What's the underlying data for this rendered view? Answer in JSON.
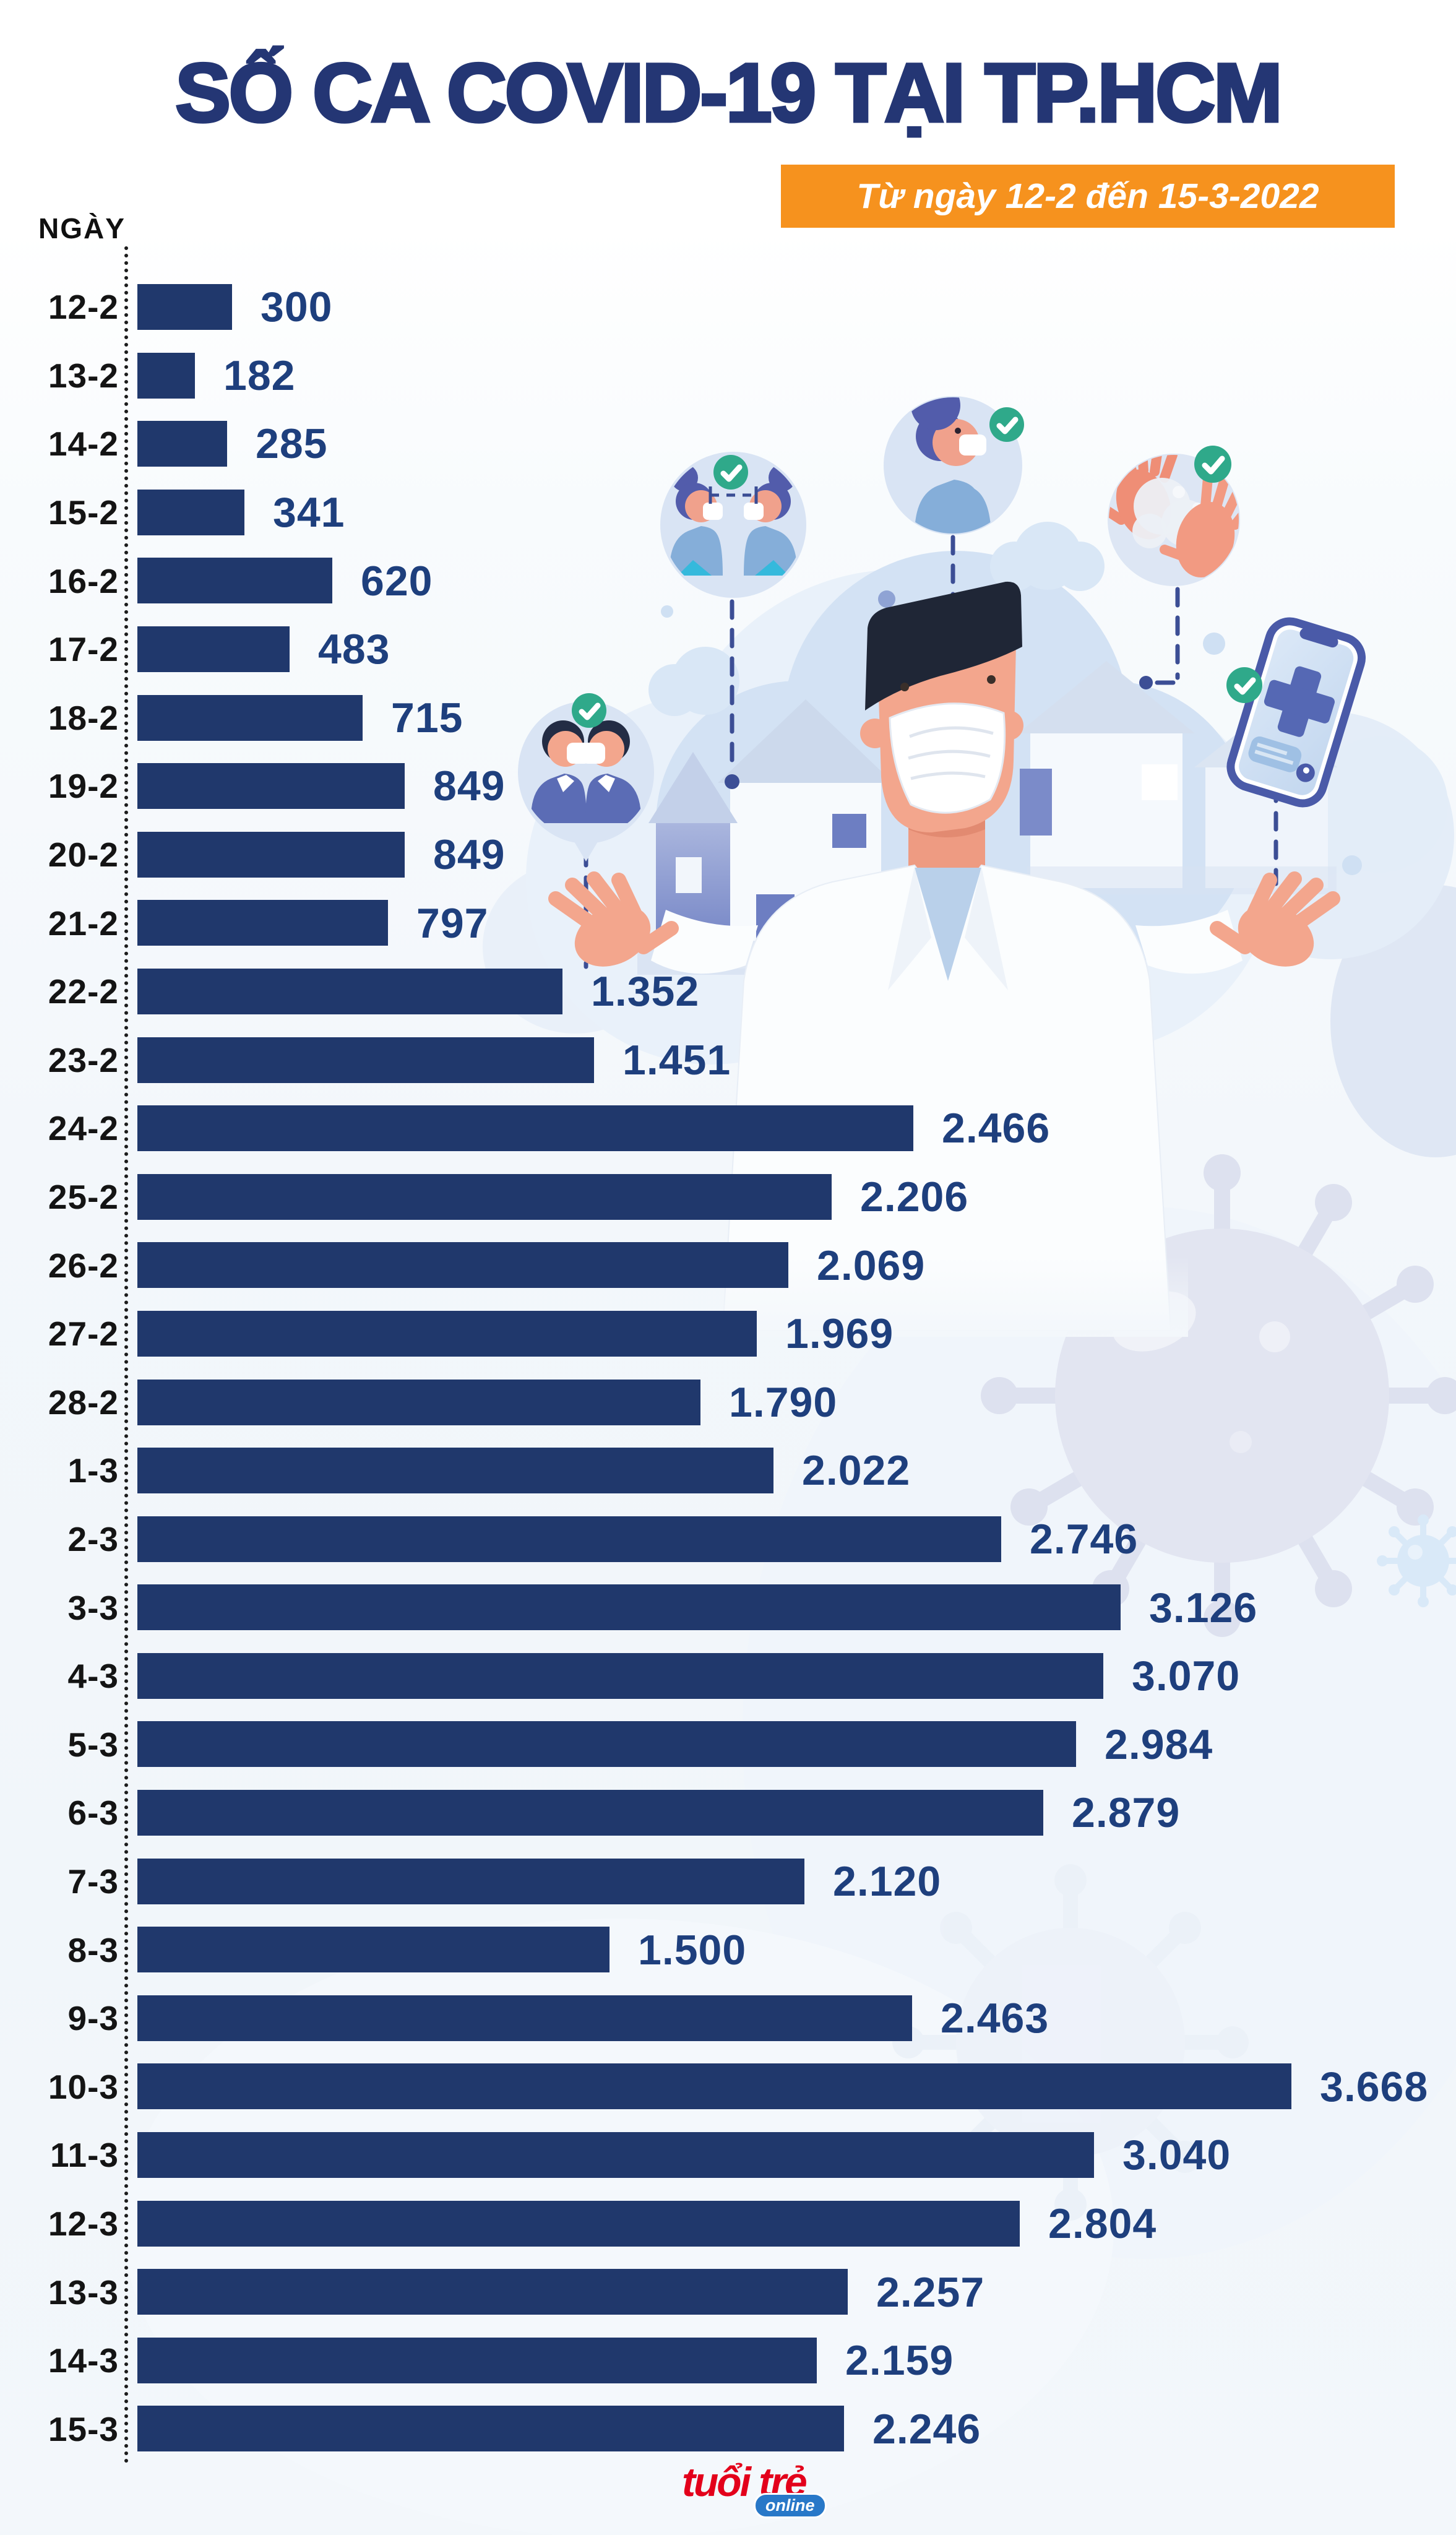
{
  "title": "SỐ CA COVID-19 TẠI TP.HCM",
  "badge": "Từ ngày 12-2 đến 15-3-2022",
  "axis_label": "NGÀY",
  "source_logo": {
    "name": "tuổi trẻ",
    "suffix": "online"
  },
  "colors": {
    "bar": "#20386c",
    "value_text": "#1e3f7d",
    "title_text": "#243674",
    "badge_bg": "#f6921e",
    "badge_text": "#ffffff",
    "date_text": "#141414",
    "check_green": "#2fa98a",
    "logo_red": "#e3001b",
    "logo_online_blue": "#2878c8"
  },
  "chart_data": {
    "type": "bar",
    "orientation": "horizontal",
    "title": "SỐ CA COVID-19 TẠI TP.HCM",
    "subtitle": "Từ ngày 12-2 đến 15-3-2022",
    "ylabel": "NGÀY",
    "xlabel": "",
    "xlim": [
      0,
      3668
    ],
    "grid": false,
    "legend": false,
    "categories": [
      "12-2",
      "13-2",
      "14-2",
      "15-2",
      "16-2",
      "17-2",
      "18-2",
      "19-2",
      "20-2",
      "21-2",
      "22-2",
      "23-2",
      "24-2",
      "25-2",
      "26-2",
      "27-2",
      "28-2",
      "1-3",
      "2-3",
      "3-3",
      "4-3",
      "5-3",
      "6-3",
      "7-3",
      "8-3",
      "9-3",
      "10-3",
      "11-3",
      "12-3",
      "13-3",
      "14-3",
      "15-3"
    ],
    "values": [
      300,
      182,
      285,
      341,
      620,
      483,
      715,
      849,
      849,
      797,
      1352,
      1451,
      2466,
      2206,
      2069,
      1969,
      1790,
      2022,
      2746,
      3126,
      3070,
      2984,
      2879,
      2120,
      1500,
      2463,
      3668,
      3040,
      2804,
      2257,
      2159,
      2246
    ],
    "value_labels": [
      "300",
      "182",
      "285",
      "341",
      "620",
      "483",
      "715",
      "849",
      "849",
      "797",
      "1.352",
      "1.451",
      "2.466",
      "2.206",
      "2.069",
      "1.969",
      "1.790",
      "2.022",
      "2.746",
      "3.126",
      "3.070",
      "2.984",
      "2.879",
      "2.120",
      "1.500",
      "2.463",
      "3.668",
      "3.040",
      "2.804",
      "2.257",
      "2.159",
      "2.246"
    ]
  },
  "illustration": {
    "description": "Doctor in face mask with prevention-tip bubbles, houses, clouds and virus silhouettes",
    "icons": [
      "two-men-masks-icon",
      "two-women-distancing-icon",
      "woman-mask-icon",
      "washing-hands-icon",
      "medical-phone-icon",
      "checkmark-icon",
      "virus-icon",
      "doctor-mask-illustration"
    ]
  }
}
